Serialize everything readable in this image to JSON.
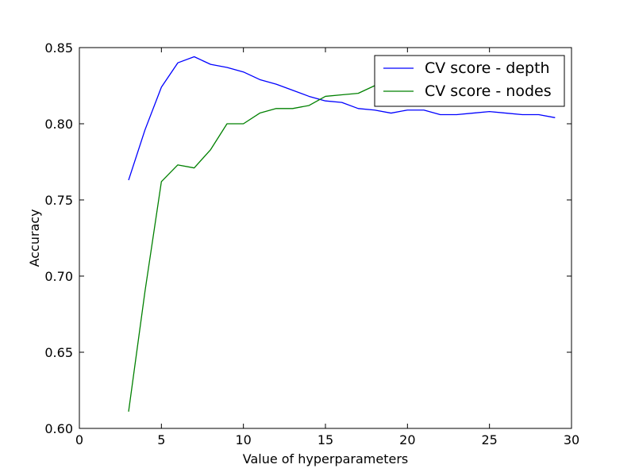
{
  "chart_data": {
    "type": "line",
    "title": "",
    "xlabel": "Value of hyperparameters",
    "ylabel": "Accuracy",
    "xlim": [
      0,
      30
    ],
    "ylim": [
      0.6,
      0.85
    ],
    "xticks": [
      0,
      5,
      10,
      15,
      20,
      25,
      30
    ],
    "yticks": [
      0.6,
      0.65,
      0.7,
      0.75,
      0.8,
      0.85
    ],
    "xtick_labels": [
      "0",
      "5",
      "10",
      "15",
      "20",
      "25",
      "30"
    ],
    "ytick_labels": [
      "0.60",
      "0.65",
      "0.70",
      "0.75",
      "0.80",
      "0.85"
    ],
    "grid": false,
    "legend_position": "top-right",
    "series": [
      {
        "name": "CV score - depth",
        "color": "#0000ff",
        "x": [
          3,
          4,
          5,
          6,
          7,
          8,
          9,
          10,
          11,
          12,
          13,
          14,
          15,
          16,
          17,
          18,
          19,
          20,
          21,
          22,
          23,
          24,
          25,
          26,
          27,
          28,
          29
        ],
        "values": [
          0.763,
          0.796,
          0.824,
          0.84,
          0.844,
          0.839,
          0.837,
          0.834,
          0.829,
          0.826,
          0.822,
          0.818,
          0.815,
          0.814,
          0.81,
          0.809,
          0.807,
          0.809,
          0.809,
          0.806,
          0.806,
          0.807,
          0.808,
          0.807,
          0.806,
          0.806,
          0.804
        ]
      },
      {
        "name": "CV score - nodes",
        "color": "#008000",
        "x": [
          3,
          4,
          5,
          6,
          7,
          8,
          9,
          10,
          11,
          12,
          13,
          14,
          15,
          16,
          17,
          18,
          19
        ],
        "values": [
          0.611,
          0.69,
          0.762,
          0.773,
          0.771,
          0.783,
          0.8,
          0.8,
          0.807,
          0.81,
          0.81,
          0.812,
          0.818,
          0.819,
          0.82,
          0.825,
          0.829
        ]
      }
    ]
  }
}
